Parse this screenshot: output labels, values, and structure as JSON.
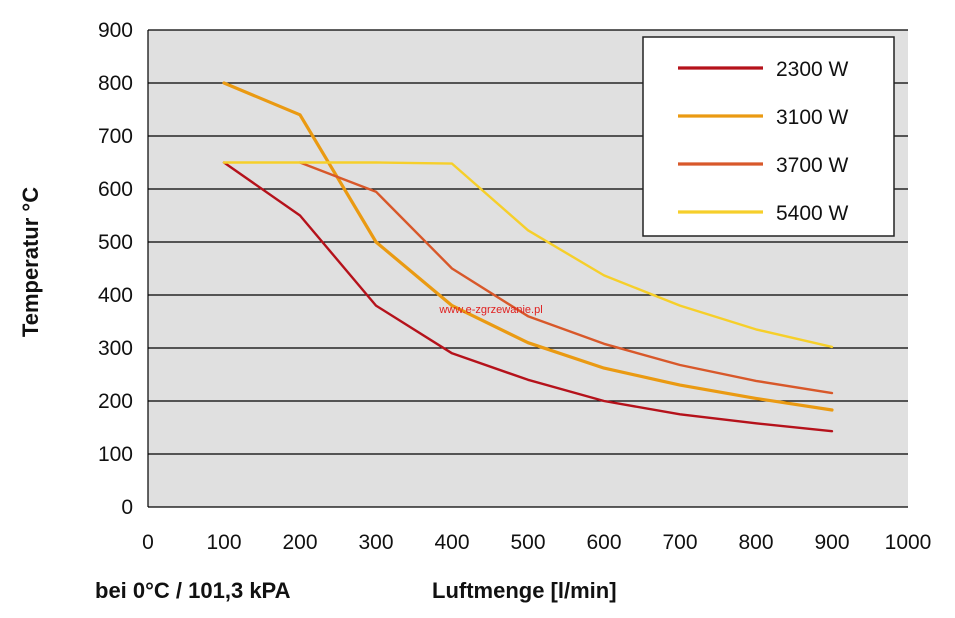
{
  "chart_data": {
    "type": "line",
    "title": "",
    "xlabel": "Luftmenge [l/min]",
    "ylabel": "Temperatur °C",
    "condition_note": "bei 0°C / 101,3 kPA",
    "watermark": "www.e-zgrzewanie.pl",
    "xlim": [
      0,
      1000
    ],
    "ylim": [
      0,
      900
    ],
    "x_ticks": [
      0,
      100,
      200,
      300,
      400,
      500,
      600,
      700,
      800,
      900,
      1000
    ],
    "y_ticks": [
      0,
      100,
      200,
      300,
      400,
      500,
      600,
      700,
      800,
      900
    ],
    "grid": "horizontal",
    "legend_position": "top-right",
    "series": [
      {
        "name": "2300 W",
        "color": "#b5121b",
        "x": [
          100,
          200,
          300,
          400,
          500,
          600,
          700,
          800,
          900
        ],
        "y": [
          650,
          550,
          380,
          290,
          240,
          200,
          175,
          158,
          143
        ]
      },
      {
        "name": "3100 W",
        "color": "#ea9a12",
        "x": [
          100,
          200,
          300,
          400,
          500,
          600,
          700,
          800,
          900
        ],
        "y": [
          800,
          740,
          500,
          380,
          310,
          262,
          230,
          205,
          183
        ]
      },
      {
        "name": "3700 W",
        "color": "#d8582a",
        "x": [
          200,
          300,
          400,
          500,
          600,
          700,
          800,
          900
        ],
        "y": [
          650,
          595,
          450,
          360,
          308,
          268,
          238,
          215
        ]
      },
      {
        "name": "5400 W",
        "color": "#f6cf2a",
        "x": [
          100,
          200,
          300,
          400,
          500,
          600,
          700,
          800,
          900
        ],
        "y": [
          650,
          650,
          650,
          648,
          522,
          437,
          380,
          335,
          302
        ]
      }
    ]
  }
}
